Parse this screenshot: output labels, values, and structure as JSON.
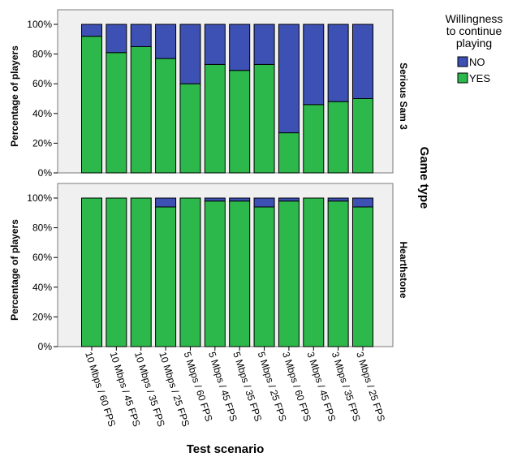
{
  "chart_data": {
    "type": "bar",
    "stacked": true,
    "percent": true,
    "xlabel": "Test scenario",
    "ylabel": "Percentage of players",
    "facet_title": "Game type",
    "categories": [
      "10 Mbps / 60 FPS",
      "10 Mbps / 45 FPS",
      "10 Mbps / 35 FPS",
      "10 Mbps / 25 FPS",
      "5 Mbps / 60 FPS",
      "5 Mbps / 45 FPS",
      "5 Mbps / 35 FPS",
      "5 Mbps / 25 FPS",
      "3 Mbps / 60 FPS",
      "3 Mbps / 45 FPS",
      "3 Mbps / 35 FPS",
      "3 Mbps / 25 FPS"
    ],
    "yticks": [
      "0%",
      "20%",
      "40%",
      "60%",
      "80%",
      "100%"
    ],
    "ylim": [
      0,
      100
    ],
    "legend": {
      "title": "Willingness to continue playing",
      "title_lines": [
        "Willingness",
        "to continue",
        "playing"
      ],
      "position": "top-right",
      "entries": [
        {
          "name": "NO",
          "color": "#3d50b4"
        },
        {
          "name": "YES",
          "color": "#2db84b"
        }
      ]
    },
    "panels": [
      {
        "name": "Serious Sam 3",
        "series": [
          {
            "name": "YES",
            "color": "#2db84b",
            "values": [
              92,
              81,
              85,
              77,
              60,
              73,
              69,
              73,
              27,
              46,
              48,
              50
            ]
          },
          {
            "name": "NO",
            "color": "#3d50b4",
            "values": [
              8,
              19,
              15,
              23,
              40,
              27,
              31,
              27,
              73,
              54,
              52,
              50
            ]
          }
        ]
      },
      {
        "name": "Hearthstone",
        "series": [
          {
            "name": "YES",
            "color": "#2db84b",
            "values": [
              100,
              100,
              100,
              94,
              100,
              98,
              98,
              94,
              98,
              100,
              98,
              94
            ]
          },
          {
            "name": "NO",
            "color": "#3d50b4",
            "values": [
              0,
              0,
              0,
              6,
              0,
              2,
              2,
              6,
              2,
              0,
              2,
              6
            ]
          }
        ]
      }
    ],
    "panel_background": "#f0f0f0"
  }
}
